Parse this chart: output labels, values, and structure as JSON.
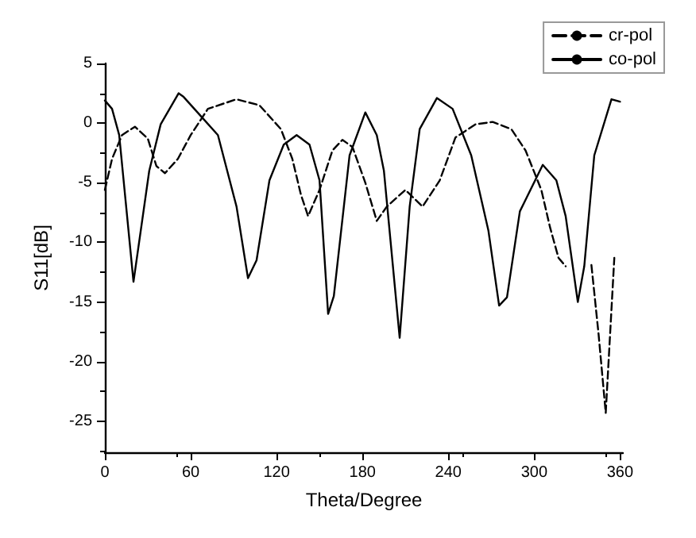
{
  "chart_data": {
    "type": "line",
    "xlabel": "Theta/Degree",
    "ylabel": "S11[dB]",
    "xlim": [
      0,
      362
    ],
    "xticks": [
      0,
      60,
      120,
      180,
      240,
      300,
      360
    ],
    "ylim": [
      -27.6,
      5
    ],
    "yticks": [
      -25,
      -20,
      -15,
      -10,
      -5,
      0,
      5
    ],
    "grid": false,
    "legend": "top right",
    "marker": "none",
    "series": [
      {
        "name": "cr-pol",
        "color": "#000000",
        "line_style": "dashed",
        "x": [
          0,
          5,
          12,
          21,
          30,
          36,
          42,
          51,
          60,
          72,
          92,
          108,
          123,
          131,
          137,
          142,
          150,
          159,
          166,
          173,
          182,
          190,
          197,
          210,
          222,
          234,
          245,
          259,
          271,
          284,
          294,
          305,
          311,
          317,
          322,
          331,
          340,
          345,
          350,
          356
        ],
        "values": [
          -5.6,
          -3,
          -1,
          -0.3,
          -1.3,
          -3.6,
          -4.2,
          -3,
          -1,
          1.2,
          2,
          1.5,
          -0.5,
          -3,
          -6,
          -7.8,
          -5.6,
          -2.3,
          -1.4,
          -2,
          -5,
          -8.2,
          -7,
          -5.6,
          -7,
          -4.8,
          -1.2,
          -0.1,
          0.1,
          -0.5,
          -2.3,
          -5.6,
          -8.7,
          -11.3,
          -12,
          null,
          -11.9,
          -17.7,
          -24.3,
          -11.3
        ]
      },
      {
        "name": "co-pol",
        "color": "#000000",
        "line_style": "solid",
        "x": [
          0,
          5,
          10,
          20,
          31,
          39,
          51.5,
          55,
          79,
          92,
          100,
          106,
          115,
          125,
          134,
          143,
          150,
          156,
          160,
          171,
          182,
          190,
          195,
          206,
          213,
          220,
          232,
          243,
          256,
          268,
          275.5,
          281,
          290,
          306,
          315.5,
          322,
          330.5,
          335,
          342,
          354,
          360
        ],
        "values": [
          1.9,
          1.2,
          -1,
          -13.3,
          -4,
          -0.1,
          2.5,
          2.2,
          -1,
          -7,
          -13,
          -11.5,
          -4.8,
          -1.8,
          -1,
          -1.8,
          -4.8,
          -16,
          -14.5,
          -2.7,
          0.9,
          -1,
          -4,
          -18,
          -7,
          -0.5,
          2.1,
          1.2,
          -2.7,
          -9,
          -15.3,
          -14.6,
          -7.4,
          -3.5,
          -4.8,
          -7.8,
          -15,
          -12,
          -2.7,
          2,
          1.8
        ]
      }
    ]
  }
}
